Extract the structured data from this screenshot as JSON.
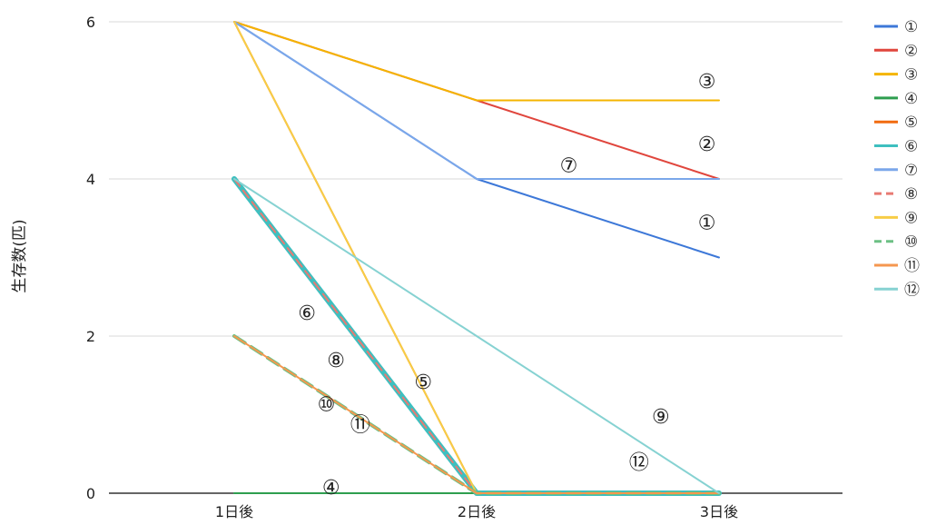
{
  "chart_data": {
    "type": "line",
    "title": "",
    "xlabel": "",
    "ylabel": "生存数(匹)",
    "categories": [
      "1日後",
      "2日後",
      "3日後"
    ],
    "ylim": [
      0,
      6
    ],
    "yticks": [
      "0",
      "2",
      "4",
      "6"
    ],
    "grid": true,
    "legend_position": "right",
    "series": [
      {
        "name": "①",
        "values": [
          6,
          4,
          3
        ],
        "color": "#3d78d8",
        "width": 2,
        "dash": false
      },
      {
        "name": "②",
        "values": [
          6,
          5,
          4
        ],
        "color": "#e0463d",
        "width": 2,
        "dash": false
      },
      {
        "name": "③",
        "values": [
          6,
          5,
          5
        ],
        "color": "#f4b400",
        "width": 2,
        "dash": false
      },
      {
        "name": "④",
        "values": [
          0,
          0,
          0
        ],
        "color": "#2e9e4f",
        "width": 2,
        "dash": false
      },
      {
        "name": "⑤",
        "values": [
          6,
          0,
          0
        ],
        "color": "#f26b10",
        "width": 2,
        "dash": false
      },
      {
        "name": "⑥",
        "values": [
          4,
          0,
          0
        ],
        "color": "#3ebfbf",
        "width": 6,
        "dash": false
      },
      {
        "name": "⑦",
        "values": [
          6,
          4,
          4
        ],
        "color": "#7ba7ea",
        "width": 2,
        "dash": false
      },
      {
        "name": "⑧",
        "values": [
          4,
          0,
          0
        ],
        "color": "#e87a72",
        "width": 2,
        "dash": true
      },
      {
        "name": "⑨",
        "values": [
          6,
          0,
          0
        ],
        "color": "#f7cd46",
        "width": 2,
        "dash": false
      },
      {
        "name": "⑩",
        "values": [
          2,
          0,
          0
        ],
        "color": "#6cc084",
        "width": 4,
        "dash": true
      },
      {
        "name": "⑪",
        "values": [
          2,
          0,
          0
        ],
        "color": "#f5974f",
        "width": 2,
        "dash": false
      },
      {
        "name": "⑫",
        "values": [
          4,
          2,
          0
        ],
        "color": "#86d2d2",
        "width": 2,
        "dash": false
      }
    ],
    "annotations": [
      {
        "text": "①",
        "x": 2.95,
        "y": 3.45
      },
      {
        "text": "②",
        "x": 2.95,
        "y": 4.45
      },
      {
        "text": "③",
        "x": 2.95,
        "y": 5.25
      },
      {
        "text": "④",
        "x": 1.4,
        "y": 0.08
      },
      {
        "text": "⑤",
        "x": 1.78,
        "y": 1.42
      },
      {
        "text": "⑥",
        "x": 1.3,
        "y": 2.3
      },
      {
        "text": "⑦",
        "x": 2.38,
        "y": 4.18
      },
      {
        "text": "⑧",
        "x": 1.42,
        "y": 1.7
      },
      {
        "text": "⑨",
        "x": 2.76,
        "y": 0.98
      },
      {
        "text": "⑩",
        "x": 1.38,
        "y": 1.14
      },
      {
        "text": "⑪",
        "x": 1.52,
        "y": 0.88
      },
      {
        "text": "⑫",
        "x": 2.67,
        "y": 0.4
      }
    ]
  }
}
